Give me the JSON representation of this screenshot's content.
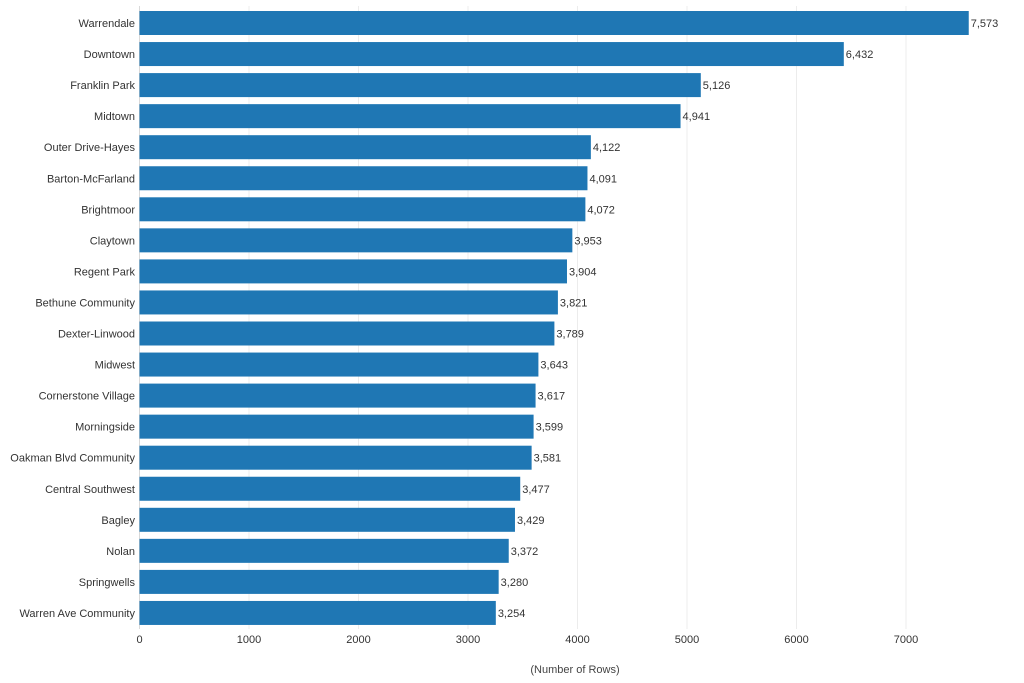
{
  "chart_data": {
    "type": "bar",
    "orientation": "horizontal",
    "title": "",
    "xlabel": "(Number of Rows)",
    "ylabel": "",
    "xlim": [
      0,
      7573
    ],
    "xticks": [
      0,
      1000,
      2000,
      3000,
      4000,
      5000,
      6000,
      7000
    ],
    "grid": true,
    "bar_color": "#1f77b4",
    "categories": [
      "Warrendale",
      "Downtown",
      "Franklin Park",
      "Midtown",
      "Outer Drive-Hayes",
      "Barton-McFarland",
      "Brightmoor",
      "Claytown",
      "Regent Park",
      "Bethune Community",
      "Dexter-Linwood",
      "Midwest",
      "Cornerstone Village",
      "Morningside",
      "Oakman Blvd Community",
      "Central Southwest",
      "Bagley",
      "Nolan",
      "Springwells",
      "Warren Ave Community"
    ],
    "values": [
      7573,
      6432,
      5126,
      4941,
      4122,
      4091,
      4072,
      3953,
      3904,
      3821,
      3789,
      3643,
      3617,
      3599,
      3581,
      3477,
      3429,
      3372,
      3280,
      3254
    ],
    "value_labels": [
      "7,573",
      "6,432",
      "5,126",
      "4,941",
      "4,122",
      "4,091",
      "4,072",
      "3,953",
      "3,904",
      "3,821",
      "3,789",
      "3,643",
      "3,617",
      "3,599",
      "3,581",
      "3,477",
      "3,429",
      "3,372",
      "3,280",
      "3,254"
    ]
  }
}
